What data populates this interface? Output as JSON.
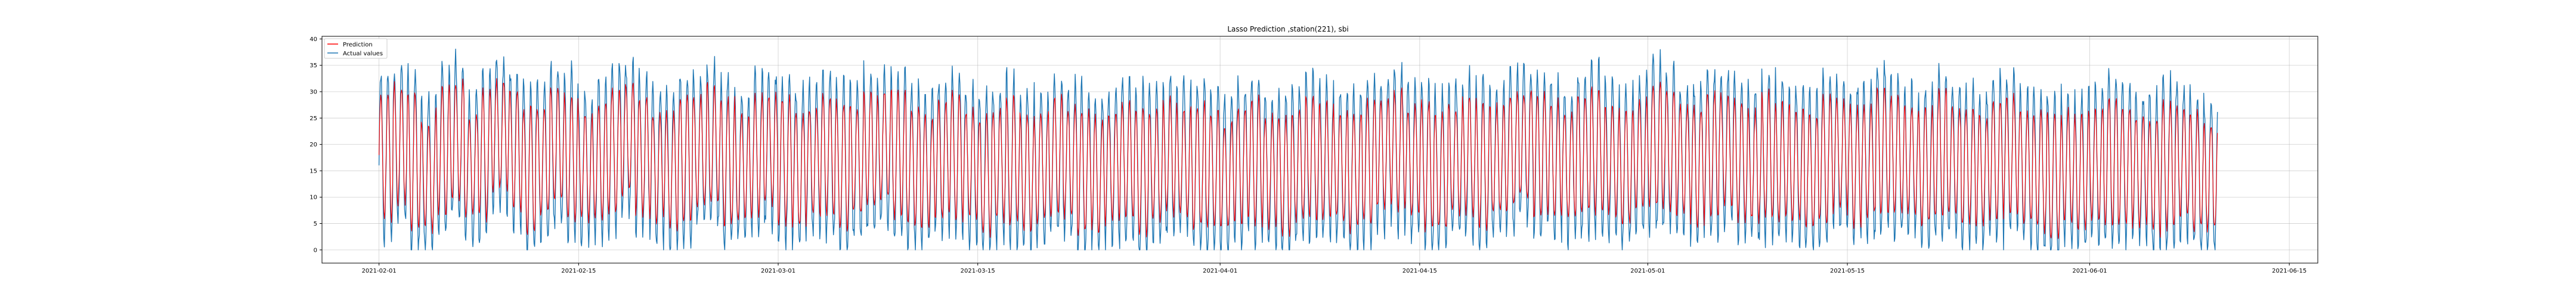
{
  "chart_data": {
    "type": "line",
    "title": "Lasso Prediction ,station(221), sbi",
    "xlabel": "",
    "ylabel": "",
    "x_start": "2021-02-01",
    "x_end": "2021-06-09",
    "xlim": [
      "2021-01-28",
      "2021-06-17"
    ],
    "ylim": [
      -2.5,
      40.5
    ],
    "yticks": [
      0,
      5,
      10,
      15,
      20,
      25,
      30,
      35,
      40
    ],
    "xticks": [
      "2021-02-01",
      "2021-02-15",
      "2021-03-01",
      "2021-03-15",
      "2021-04-01",
      "2021-04-15",
      "2021-05-01",
      "2021-05-15",
      "2021-06-01",
      "2021-06-15"
    ],
    "grid": true,
    "legend": "top-left",
    "sampling": "hourly",
    "series": [
      {
        "name": "Prediction",
        "color": "#ff0000",
        "daily_mean": [
          18,
          20,
          17,
          14,
          19,
          21,
          16,
          18,
          22,
          19,
          15,
          17,
          20,
          18,
          16,
          17,
          19,
          21,
          18,
          16,
          15,
          17,
          19,
          20,
          17,
          16,
          18,
          19,
          17,
          15,
          17,
          18,
          16,
          17,
          19,
          20,
          18,
          16,
          15,
          17,
          18,
          16,
          14,
          16,
          17,
          15,
          16,
          18,
          17,
          15,
          14,
          16,
          17,
          15,
          16,
          18,
          17,
          16,
          15,
          14,
          16,
          17,
          15,
          14,
          16,
          18,
          17,
          16,
          15,
          17,
          18,
          19,
          17,
          16,
          15,
          17,
          18,
          16,
          17,
          19,
          20,
          18,
          17,
          16,
          18,
          19,
          17,
          16,
          18,
          20,
          19,
          17,
          16,
          18,
          19,
          17,
          16,
          18,
          17,
          16,
          15,
          17,
          18,
          16,
          17,
          19,
          18,
          17,
          16,
          18,
          17,
          16,
          15,
          17,
          18,
          16,
          15,
          14,
          16,
          15,
          16,
          17,
          16,
          15,
          14,
          16,
          17,
          15,
          14
        ],
        "daily_amplitude": [
          14,
          13,
          15,
          12,
          14,
          13,
          11,
          14,
          12,
          13,
          14,
          12,
          13,
          14,
          12,
          13,
          14,
          12,
          13,
          12,
          13,
          14,
          12,
          13,
          14,
          12,
          13,
          12,
          14,
          13,
          12,
          13,
          14,
          12,
          13,
          12,
          14,
          13,
          12,
          13,
          14,
          12,
          13,
          12,
          14,
          13,
          12,
          13,
          12,
          14,
          13,
          12,
          13,
          14,
          12,
          13,
          12,
          14,
          13,
          12,
          13,
          14,
          12,
          13,
          12,
          14,
          13,
          12,
          13,
          14,
          12,
          13,
          12,
          14,
          13,
          12,
          13,
          14,
          12,
          13,
          12,
          14,
          13,
          12,
          13,
          14,
          12,
          13,
          12,
          14,
          13,
          12,
          13,
          14,
          12,
          13,
          12,
          14,
          13,
          12,
          13,
          14,
          12,
          13,
          12,
          14,
          13,
          12,
          13,
          14,
          12,
          13,
          12,
          14,
          13,
          12,
          13,
          14,
          12,
          13,
          12,
          14,
          13,
          12,
          13,
          14,
          12,
          13,
          12
        ]
      },
      {
        "name": "Actual values",
        "color": "#1f77b4",
        "daily_mean": [
          18,
          20,
          17,
          14,
          19,
          21,
          16,
          18,
          22,
          19,
          15,
          17,
          20,
          18,
          16,
          17,
          19,
          21,
          18,
          16,
          15,
          17,
          19,
          20,
          17,
          16,
          18,
          19,
          17,
          15,
          17,
          18,
          16,
          17,
          19,
          20,
          18,
          16,
          15,
          17,
          18,
          16,
          14,
          16,
          17,
          15,
          16,
          18,
          17,
          15,
          14,
          16,
          17,
          15,
          16,
          18,
          17,
          16,
          15,
          14,
          16,
          17,
          15,
          14,
          16,
          18,
          17,
          16,
          15,
          17,
          18,
          19,
          17,
          16,
          15,
          17,
          18,
          16,
          17,
          19,
          20,
          18,
          17,
          16,
          18,
          19,
          17,
          16,
          18,
          20,
          19,
          17,
          16,
          18,
          19,
          17,
          16,
          18,
          17,
          16,
          15,
          17,
          18,
          16,
          17,
          19,
          18,
          17,
          16,
          18,
          17,
          16,
          15,
          17,
          18,
          16,
          15,
          14,
          16,
          15,
          16,
          17,
          16,
          15,
          14,
          16,
          17,
          15,
          14
        ],
        "daily_amplitude": [
          19,
          18,
          20,
          17,
          19,
          18,
          16,
          19,
          17,
          18,
          19,
          17,
          18,
          19,
          17,
          18,
          19,
          17,
          18,
          17,
          18,
          19,
          17,
          18,
          19,
          17,
          18,
          17,
          19,
          18,
          17,
          18,
          19,
          17,
          18,
          17,
          19,
          18,
          17,
          18,
          19,
          17,
          18,
          17,
          19,
          18,
          17,
          18,
          17,
          19,
          18,
          17,
          18,
          19,
          17,
          18,
          17,
          19,
          18,
          17,
          18,
          19,
          17,
          18,
          17,
          19,
          18,
          17,
          18,
          19,
          17,
          18,
          17,
          19,
          18,
          17,
          18,
          19,
          17,
          18,
          17,
          19,
          18,
          17,
          18,
          19,
          17,
          18,
          17,
          19,
          18,
          17,
          18,
          19,
          17,
          18,
          17,
          19,
          18,
          17,
          18,
          19,
          17,
          18,
          17,
          19,
          18,
          17,
          18,
          19,
          17,
          18,
          17,
          19,
          18,
          17,
          18,
          19,
          17,
          18,
          17,
          19,
          18,
          17,
          18,
          19,
          17,
          18,
          17
        ]
      }
    ]
  }
}
